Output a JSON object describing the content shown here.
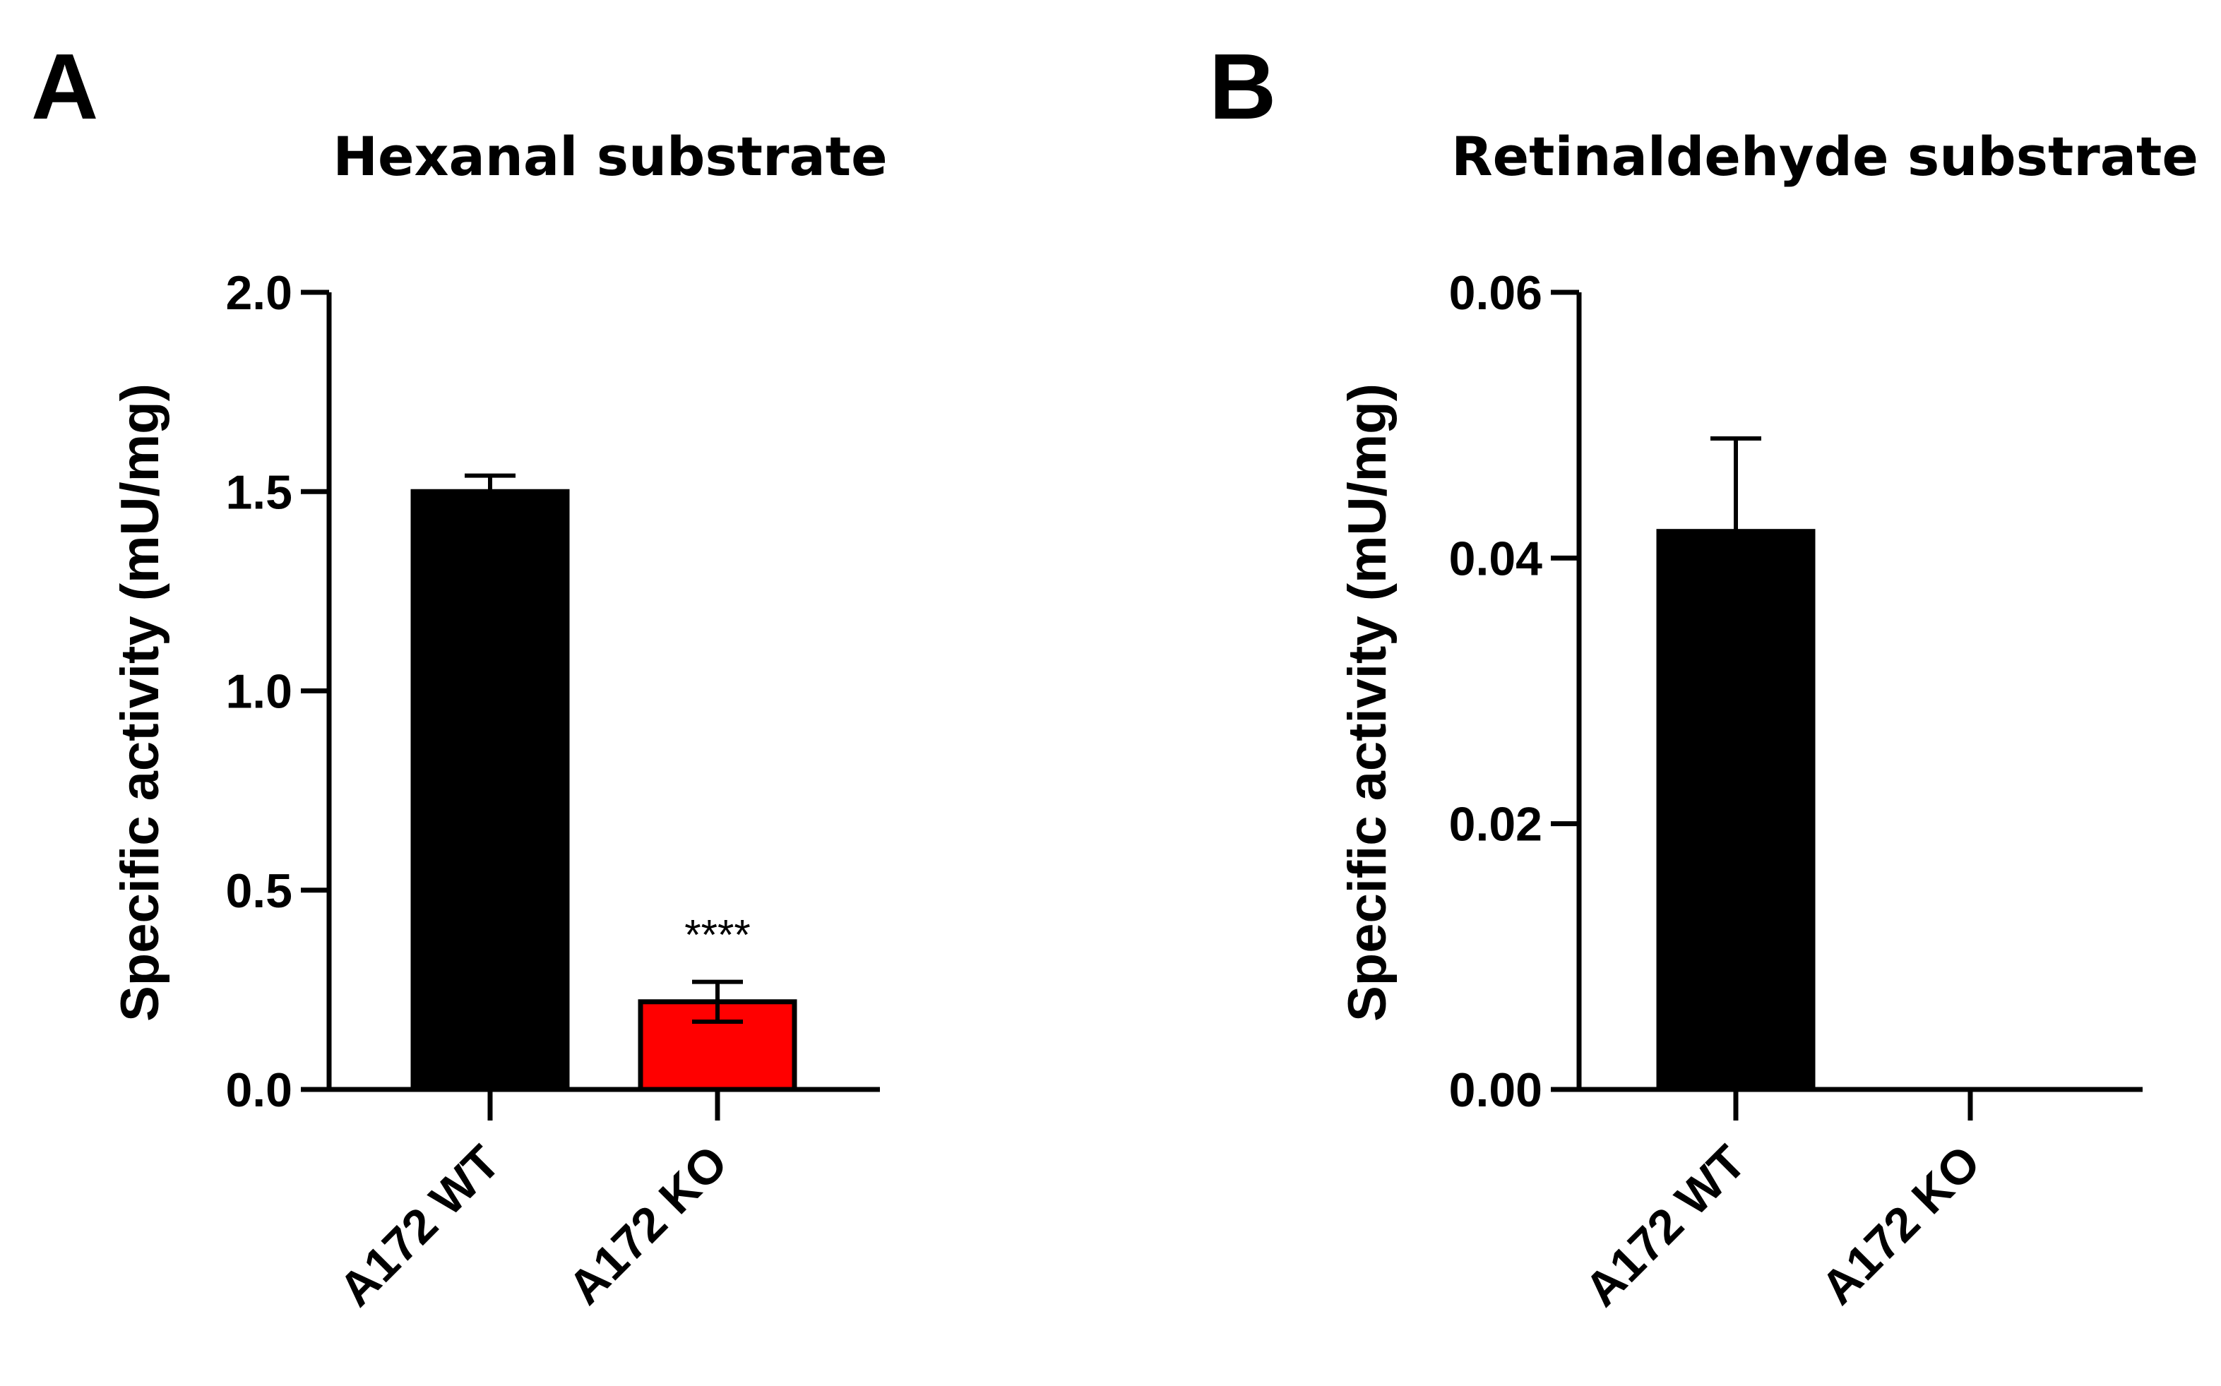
{
  "chart_data": [
    {
      "panel": "A",
      "type": "bar",
      "title": "Hexanal substrate",
      "ylabel": "Specific activity (mU/mg)",
      "xlabel": "",
      "ylim": [
        0,
        2.0
      ],
      "yticks": [
        0.0,
        0.5,
        1.0,
        1.5,
        2.0
      ],
      "ytick_labels": [
        "0.0",
        "0.5",
        "1.0",
        "1.5",
        "2.0"
      ],
      "categories": [
        "A172 WT",
        "A172 KO"
      ],
      "values": [
        1.5,
        0.22
      ],
      "errors": [
        0.04,
        0.05
      ],
      "colors": [
        "#000000",
        "#ff0000"
      ],
      "annotations": [
        {
          "category": "A172 KO",
          "text": "****"
        }
      ]
    },
    {
      "panel": "B",
      "type": "bar",
      "title": "Retinaldehyde substrate",
      "ylabel": "Specific activity (mU/mg)",
      "xlabel": "",
      "ylim": [
        0,
        0.06
      ],
      "yticks": [
        0.0,
        0.02,
        0.04,
        0.06
      ],
      "ytick_labels": [
        "0.00",
        "0.02",
        "0.04",
        "0.06"
      ],
      "categories": [
        "A172 WT",
        "A172 KO"
      ],
      "values": [
        0.042,
        0.0
      ],
      "errors": [
        0.007,
        0.0
      ],
      "colors": [
        "#000000",
        "#000000"
      ],
      "annotations": []
    }
  ]
}
